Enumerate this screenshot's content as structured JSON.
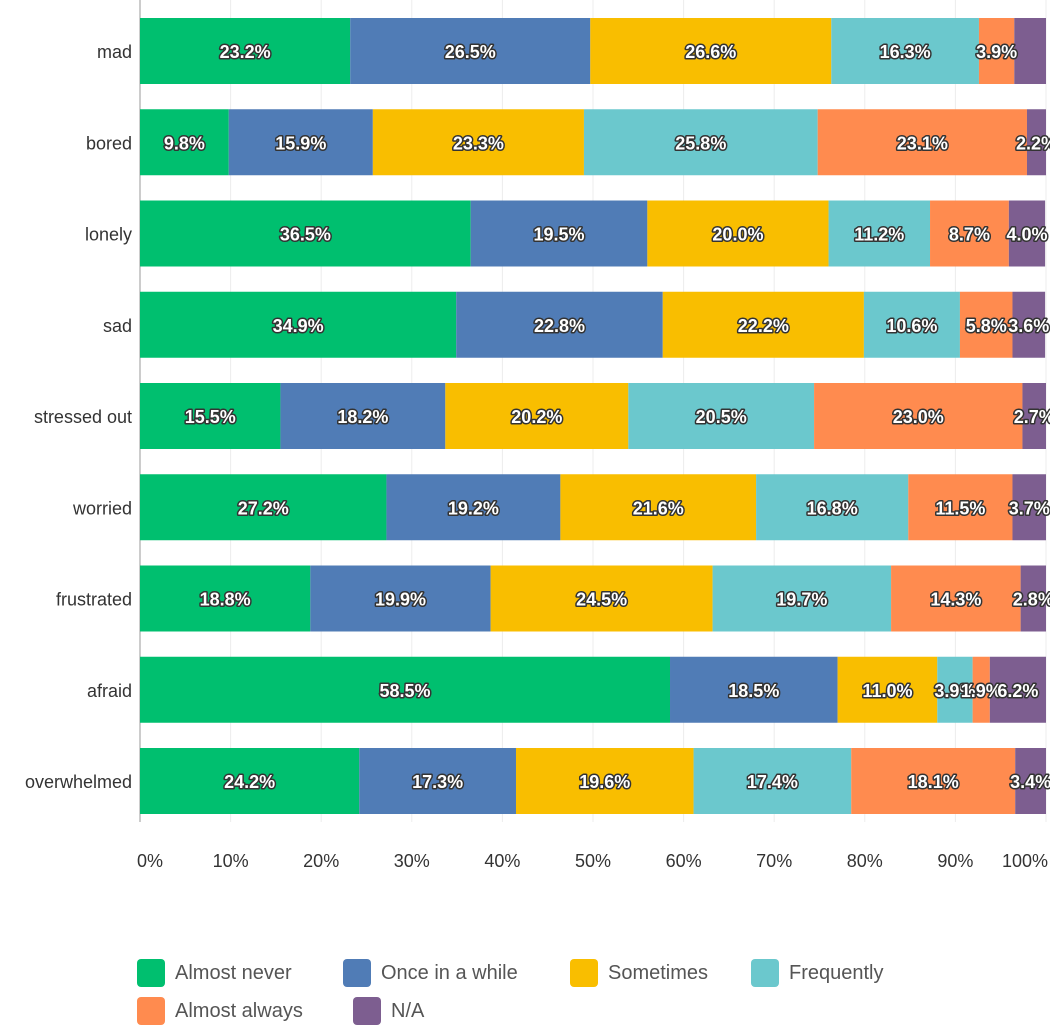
{
  "chart_data": {
    "type": "bar",
    "orientation": "horizontal",
    "stacked": true,
    "xlim": [
      0,
      100
    ],
    "x_ticks": [
      "0%",
      "10%",
      "20%",
      "30%",
      "40%",
      "50%",
      "60%",
      "70%",
      "80%",
      "90%",
      "100%"
    ],
    "grid": true,
    "legend_position": "bottom",
    "categories": [
      "mad",
      "bored",
      "lonely",
      "sad",
      "stressed out",
      "worried",
      "frustrated",
      "afraid",
      "overwhelmed"
    ],
    "series": [
      {
        "name": "Almost never",
        "color": "#00bf6f",
        "values": [
          23.2,
          9.8,
          36.5,
          34.9,
          15.5,
          27.2,
          18.8,
          58.5,
          24.2
        ],
        "labels": [
          "23.2%",
          "9.8%",
          "36.5%",
          "34.9%",
          "15.5%",
          "27.2%",
          "18.8%",
          "58.5%",
          "24.2%"
        ]
      },
      {
        "name": "Once in a while",
        "color": "#507cb6",
        "values": [
          26.5,
          15.9,
          19.5,
          22.8,
          18.2,
          19.2,
          19.9,
          18.5,
          17.3
        ],
        "labels": [
          "26.5%",
          "15.9%",
          "19.5%",
          "22.8%",
          "18.2%",
          "19.2%",
          "19.9%",
          "18.5%",
          "17.3%"
        ]
      },
      {
        "name": "Sometimes",
        "color": "#f9be00",
        "values": [
          26.6,
          23.3,
          20.0,
          22.2,
          20.2,
          21.6,
          24.5,
          11.0,
          19.6
        ],
        "labels": [
          "26.6%",
          "23.3%",
          "20.0%",
          "22.2%",
          "20.2%",
          "21.6%",
          "24.5%",
          "11.0%",
          "19.6%"
        ]
      },
      {
        "name": "Frequently",
        "color": "#6bc8cd",
        "values": [
          16.3,
          25.8,
          11.2,
          10.6,
          20.5,
          16.8,
          19.7,
          3.9,
          17.4
        ],
        "labels": [
          "16.3%",
          "25.8%",
          "11.2%",
          "10.6%",
          "20.5%",
          "16.8%",
          "19.7%",
          "3.9%",
          "17.4%"
        ]
      },
      {
        "name": "Almost always",
        "color": "#ff8b4f",
        "values": [
          3.9,
          23.1,
          8.7,
          5.8,
          23.0,
          11.5,
          14.3,
          1.9,
          18.1
        ],
        "labels": [
          "3.9%",
          "23.1%",
          "8.7%",
          "5.8%",
          "23.0%",
          "11.5%",
          "14.3%",
          "1.9%",
          "18.1%"
        ]
      },
      {
        "name": "N/A",
        "color": "#7d5e90",
        "values": [
          3.6,
          2.2,
          4.0,
          3.6,
          2.7,
          3.7,
          2.8,
          6.2,
          3.4
        ],
        "labels": [
          "",
          "2.2%",
          "4.0%",
          "3.6%",
          "2.7%",
          "3.7%",
          "2.8%",
          "6.2%",
          "3.4%"
        ]
      }
    ]
  }
}
